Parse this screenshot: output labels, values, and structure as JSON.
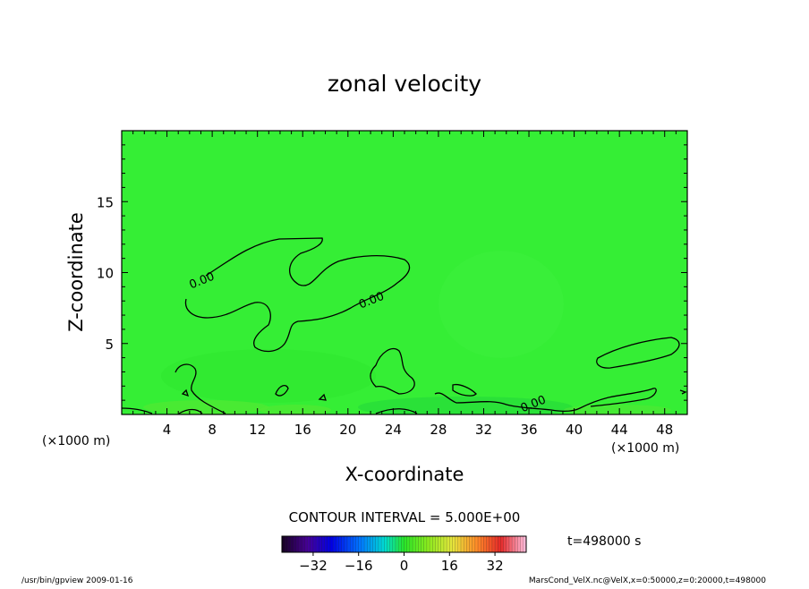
{
  "chart_data": {
    "type": "heatmap",
    "title": "zonal velocity",
    "xlabel": "X-coordinate",
    "ylabel": "Z-coordinate",
    "x_unit_left": "(×1000 m)",
    "x_unit_right": "(×1000 m)",
    "xlim": [
      0,
      50
    ],
    "ylim": [
      0,
      20
    ],
    "x_ticks": [
      "4",
      "8",
      "12",
      "16",
      "20",
      "24",
      "28",
      "32",
      "36",
      "40",
      "44",
      "48"
    ],
    "y_ticks": [
      "5",
      "10",
      "15"
    ],
    "field_color": "#33ee33",
    "contour_level_labels": [
      {
        "text": "0.00",
        "x": 7.2,
        "z": 9.2
      },
      {
        "text": "0.00",
        "x": 22.2,
        "z": 7.8
      },
      {
        "text": "0.00",
        "x": 36.5,
        "z": 0.5
      }
    ],
    "contour_interval_text": "CONTOUR INTERVAL = 5.000E+00",
    "time_label": "t=498000 s",
    "colorbar": {
      "vmin": -43,
      "vmax": 43,
      "tick_values": [
        -32,
        -16,
        0,
        16,
        32
      ],
      "tick_labels": [
        "−32",
        "−16",
        "0",
        "16",
        "32"
      ]
    }
  },
  "footer": {
    "left": "/usr/bin/gpview   2009-01-16",
    "right": "MarsCond_VelX.nc@VelX,x=0:50000,z=0:20000,t=498000"
  }
}
